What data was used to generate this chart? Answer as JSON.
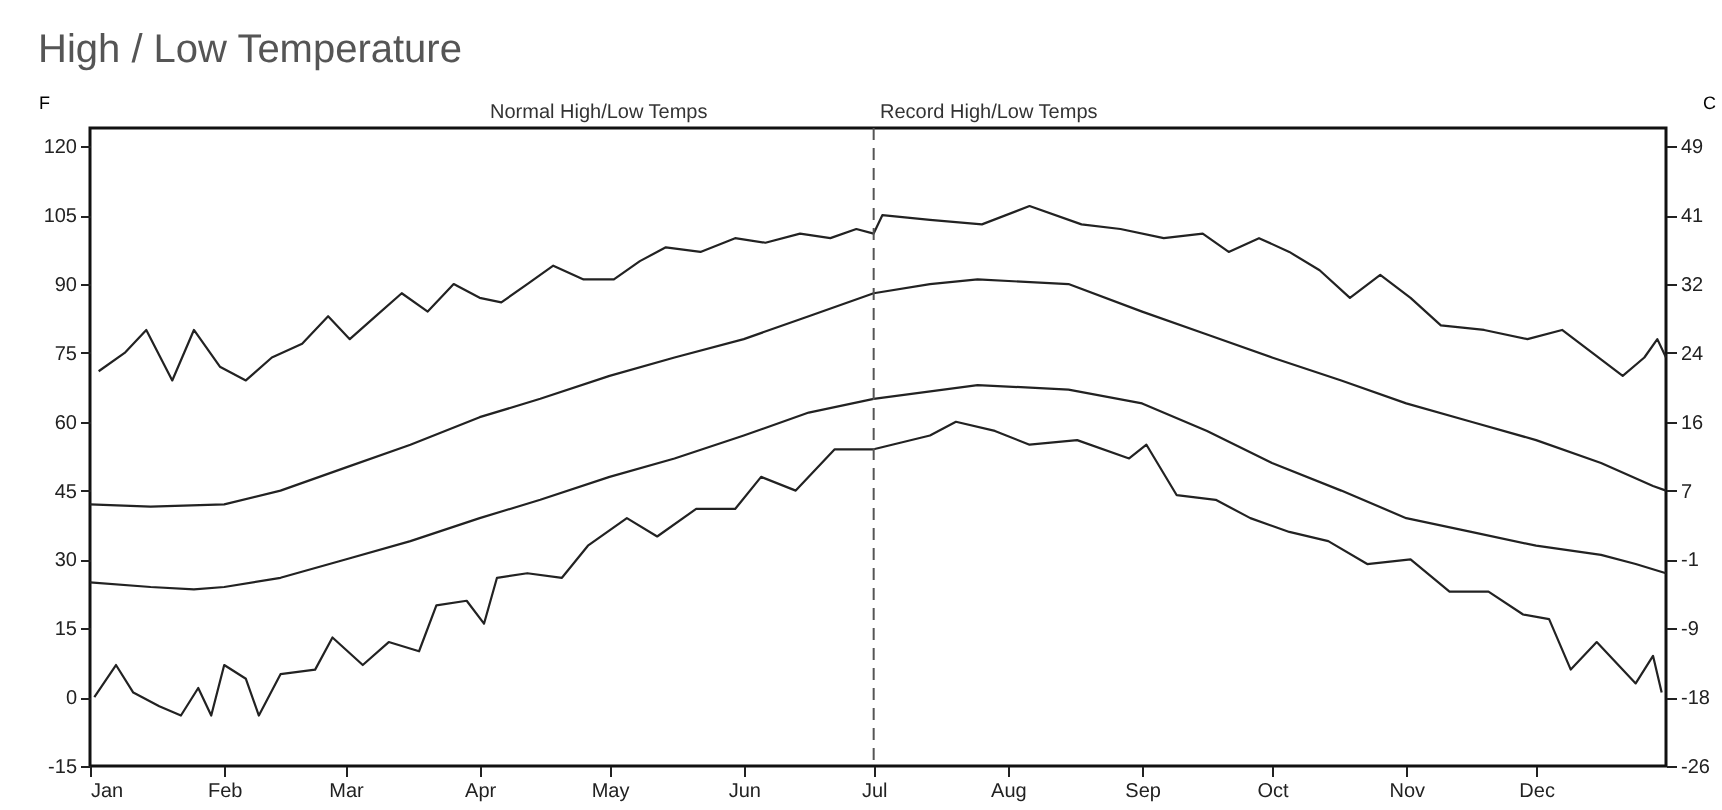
{
  "chart_data": {
    "type": "line",
    "title": "High / Low Temperature",
    "ylabel": "F",
    "y2label": "C",
    "annotations": [
      "Normal High/Low Temps",
      "Record High/Low Temps"
    ],
    "xlim": [
      "--01-01",
      "--12-31"
    ],
    "xticks": [
      {
        "value": "--01-01",
        "label": "Jan"
      },
      {
        "value": "--02-01",
        "label": "Feb"
      },
      {
        "value": "--03-01",
        "label": "Mar"
      },
      {
        "value": "--04-01",
        "label": "Apr"
      },
      {
        "value": "--05-01",
        "label": "May"
      },
      {
        "value": "--06-01",
        "label": "Jun"
      },
      {
        "value": "--07-01",
        "label": "Jul"
      },
      {
        "value": "--08-01",
        "label": "Aug"
      },
      {
        "value": "--09-01",
        "label": "Sep"
      },
      {
        "value": "--10-01",
        "label": "Oct"
      },
      {
        "value": "--11-01",
        "label": "Nov"
      },
      {
        "value": "--12-01",
        "label": "Dec"
      }
    ],
    "ylim": [
      -15,
      124
    ],
    "yticks": [
      -15,
      0,
      15,
      30,
      45,
      60,
      75,
      90,
      105,
      120
    ],
    "y2lim": [
      -26.11,
      51.11
    ],
    "y2ticks": [
      {
        "value": -26.11,
        "label": "-26"
      },
      {
        "value": -17.78,
        "label": "-18"
      },
      {
        "value": -9.44,
        "label": "-9"
      },
      {
        "value": -1.11,
        "label": "-1"
      },
      {
        "value": 7.22,
        "label": "7"
      },
      {
        "value": 15.56,
        "label": "16"
      },
      {
        "value": 23.89,
        "label": "24"
      },
      {
        "value": 32.22,
        "label": "32"
      },
      {
        "value": 40.56,
        "label": "41"
      },
      {
        "value": 48.89,
        "label": "49"
      }
    ],
    "grid": false,
    "marker": "none",
    "line_style": "solid",
    "ref_lines": [
      {
        "axis": "x",
        "value": "--07-01",
        "line_style": "dashed",
        "color": "#555555"
      }
    ],
    "series": [
      {
        "color": "#222222",
        "x": [
          "--01-03",
          "--01-09",
          "--01-14",
          "--01-20",
          "--01-25",
          "--01-31",
          "--02-06",
          "--02-12",
          "--02-19",
          "--02-25",
          "--03-02",
          "--03-08",
          "--03-14",
          "--03-20",
          "--03-26",
          "--04-01",
          "--04-06",
          "--04-12",
          "--04-18",
          "--04-25",
          "--05-02",
          "--05-08",
          "--05-14",
          "--05-22",
          "--05-30",
          "--06-06",
          "--06-14",
          "--06-21",
          "--06-27",
          "--07-01",
          "--07-03",
          "--07-14",
          "--07-26",
          "--08-06",
          "--08-18",
          "--08-27",
          "--09-06",
          "--09-15",
          "--09-21",
          "--09-28",
          "--10-05",
          "--10-12",
          "--10-19",
          "--10-26",
          "--11-02",
          "--11-09",
          "--11-19",
          "--11-29",
          "--12-07",
          "--12-14",
          "--12-21",
          "--12-26",
          "--12-29",
          "--12-31"
        ],
        "values": [
          71,
          75,
          80,
          69,
          80,
          72,
          69,
          74,
          77,
          83,
          78,
          83,
          88,
          84,
          90,
          87,
          86,
          90,
          94,
          91,
          91,
          95,
          98,
          97,
          100,
          99,
          101,
          100,
          102,
          101,
          105,
          104,
          103,
          107,
          103,
          102,
          100,
          101,
          97,
          100,
          97,
          93,
          87,
          92,
          87,
          81,
          80,
          78,
          80,
          75,
          70,
          74,
          78,
          74
        ]
      },
      {
        "color": "#222222",
        "x": [
          "--01-01",
          "--01-15",
          "--02-01",
          "--02-14",
          "--03-01",
          "--03-16",
          "--04-01",
          "--04-15",
          "--05-01",
          "--05-16",
          "--06-01",
          "--06-16",
          "--07-01",
          "--07-14",
          "--07-25",
          "--08-15",
          "--09-01",
          "--09-16",
          "--10-01",
          "--10-17",
          "--11-01",
          "--11-16",
          "--12-01",
          "--12-16",
          "--12-28",
          "--12-31"
        ],
        "values": [
          42,
          41.5,
          42,
          45,
          50,
          55,
          61,
          65,
          70,
          74,
          78,
          83,
          88,
          90,
          91,
          90,
          84,
          79,
          74,
          69,
          64,
          60,
          56,
          51,
          46,
          45
        ]
      },
      {
        "color": "#222222",
        "x": [
          "--01-01",
          "--01-15",
          "--01-25",
          "--02-01",
          "--02-14",
          "--03-01",
          "--03-16",
          "--04-01",
          "--04-15",
          "--05-01",
          "--05-16",
          "--06-01",
          "--06-16",
          "--07-01",
          "--07-25",
          "--08-15",
          "--09-01",
          "--09-16",
          "--10-01",
          "--10-17",
          "--11-01",
          "--11-16",
          "--12-01",
          "--12-16",
          "--12-24",
          "--12-31"
        ],
        "values": [
          25,
          24,
          23.5,
          24,
          26,
          30,
          34,
          39,
          43,
          48,
          52,
          57,
          62,
          65,
          68,
          67,
          64,
          58,
          51,
          45,
          39,
          36,
          33,
          31,
          29,
          27
        ]
      },
      {
        "color": "#222222",
        "x": [
          "--01-02",
          "--01-07",
          "--01-11",
          "--01-17",
          "--01-22",
          "--01-26",
          "--01-29",
          "--02-01",
          "--02-06",
          "--02-09",
          "--02-14",
          "--02-22",
          "--02-26",
          "--03-05",
          "--03-11",
          "--03-18",
          "--03-22",
          "--03-29",
          "--04-02",
          "--04-05",
          "--04-12",
          "--04-20",
          "--04-26",
          "--05-05",
          "--05-12",
          "--05-21",
          "--05-30",
          "--06-05",
          "--06-13",
          "--06-22",
          "--06-27",
          "--07-01",
          "--07-14",
          "--07-20",
          "--07-29",
          "--08-06",
          "--08-17",
          "--08-29",
          "--09-02",
          "--09-09",
          "--09-18",
          "--09-26",
          "--10-05",
          "--10-14",
          "--10-23",
          "--11-02",
          "--11-11",
          "--11-20",
          "--11-28",
          "--12-04",
          "--12-09",
          "--12-15",
          "--12-24",
          "--12-28",
          "--12-30"
        ],
        "values": [
          0,
          7,
          1,
          -2,
          -4,
          2,
          -4,
          7,
          4,
          -4,
          5,
          6,
          13,
          7,
          12,
          10,
          20,
          21,
          16,
          26,
          27,
          26,
          33,
          39,
          35,
          41,
          41,
          48,
          45,
          54,
          54,
          54,
          57,
          60,
          58,
          55,
          56,
          52,
          55,
          44,
          43,
          39,
          36,
          34,
          29,
          30,
          23,
          23,
          18,
          17,
          6,
          12,
          3,
          9,
          1
        ]
      }
    ]
  }
}
